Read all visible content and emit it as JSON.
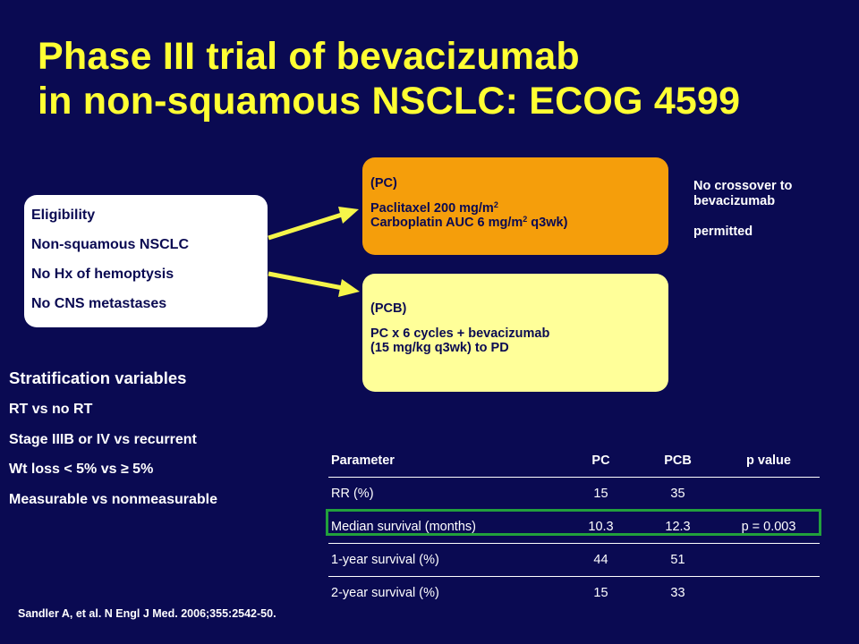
{
  "title": {
    "line1": "Phase III trial of bevacizumab",
    "line2": "in non-squamous NSCLC: ECOG 4599"
  },
  "eligibility": {
    "items": [
      "Eligibility",
      "Non-squamous NSCLC",
      "No Hx of hemoptysis",
      "No CNS metastases"
    ]
  },
  "arm_pc": {
    "label": "(PC)",
    "line1_pre": "Paclitaxel 200 mg/m",
    "line1_sup": "2",
    "line2_pre": "Carboplatin AUC 6 mg/m",
    "line2_sup": "2",
    "line2_post": " q3wk)"
  },
  "arm_pcb": {
    "label": "(PCB)",
    "line1": "PC x 6 cycles + bevacizumab",
    "line2": "(15 mg/kg q3wk) to PD"
  },
  "crossover_note": {
    "line1": "No crossover to bevacizumab",
    "line2": "permitted"
  },
  "stratification": {
    "heading": "Stratification variables",
    "items": [
      "RT vs no RT",
      "Stage IIIB or IV vs recurrent",
      "Wt loss < 5% vs ≥ 5%",
      "Measurable vs nonmeasurable"
    ]
  },
  "results_table": {
    "headers": [
      "Parameter",
      "PC",
      "PCB",
      "p  value"
    ],
    "rows": [
      [
        "RR (%)",
        "15",
        "35",
        ""
      ],
      [
        "Median survival (months)",
        "10.3",
        "12.3",
        "p = 0.003"
      ],
      [
        "1-year survival (%)",
        "44",
        "51",
        ""
      ],
      [
        "2-year survival (%)",
        "15",
        "33",
        ""
      ]
    ]
  },
  "reference": "Sandler A, et al. N Engl J Med. 2006;355:2542-50.",
  "colors": {
    "background": "#0a0a52",
    "title": "#ffff33",
    "arm_pc": "#f59e0b",
    "arm_pcb": "#ffff99",
    "arrow": "#f5f54a",
    "highlight": "#22a03c"
  }
}
